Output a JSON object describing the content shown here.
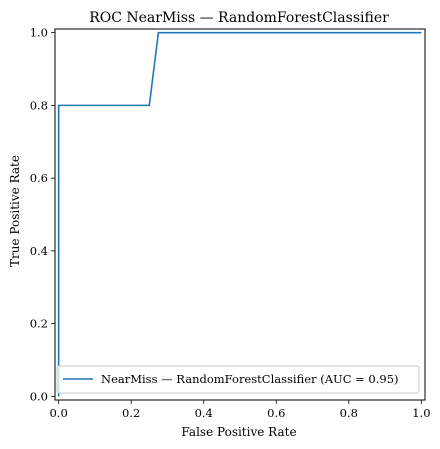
{
  "chart_data": {
    "type": "line",
    "title": "ROC NearMiss — RandomForestClassifier",
    "xlabel": "False Positive Rate",
    "ylabel": "True Positive Rate",
    "xlim": [
      -0.01,
      1.01
    ],
    "ylim": [
      -0.01,
      1.01
    ],
    "xticks": [
      0.0,
      0.2,
      0.4,
      0.6,
      0.8,
      1.0
    ],
    "yticks": [
      0.0,
      0.2,
      0.4,
      0.6,
      0.8,
      1.0
    ],
    "xtick_labels": [
      "0.0",
      "0.2",
      "0.4",
      "0.6",
      "0.8",
      "1.0"
    ],
    "ytick_labels": [
      "0.0",
      "0.2",
      "0.4",
      "0.6",
      "0.8",
      "1.0"
    ],
    "grid": false,
    "legend_position": "lower-right",
    "series": [
      {
        "name": "NearMiss — RandomForestClassifier (AUC = 0.95)",
        "color": "#1f77b4",
        "x": [
          0.0,
          0.0,
          0.0,
          0.25,
          0.275,
          1.0
        ],
        "y": [
          0.0,
          0.8,
          0.8,
          0.8,
          1.0,
          1.0
        ]
      }
    ]
  }
}
